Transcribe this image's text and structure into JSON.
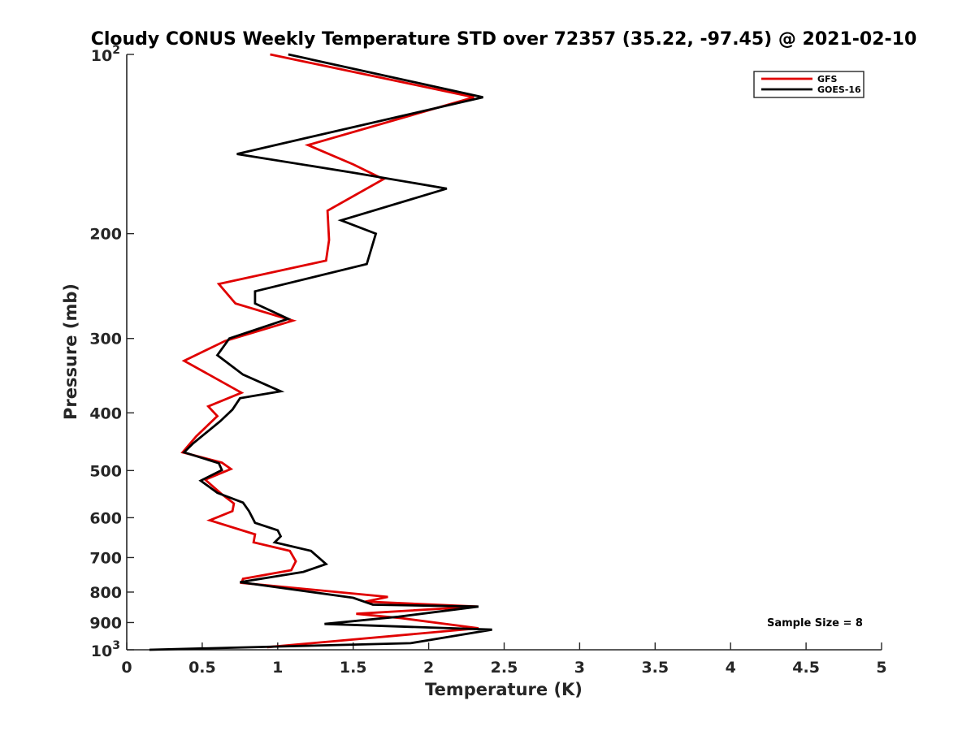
{
  "chart_data": {
    "type": "line",
    "title": "Cloudy CONUS Weekly Temperature STD over 72357 (35.22, -97.45) @ 2021-02-10",
    "xlabel": "Temperature (K)",
    "ylabel": "Pressure (mb)",
    "xlim": [
      0,
      5
    ],
    "ylim": [
      100,
      1000
    ],
    "y_scale": "log",
    "y_reversed": true,
    "grid": false,
    "legend_position": "top-right",
    "x_ticks": [
      "0",
      "0.5",
      "1",
      "1.5",
      "2",
      "2.5",
      "3",
      "3.5",
      "4",
      "4.5",
      "5"
    ],
    "x_tick_values": [
      0,
      0.5,
      1,
      1.5,
      2,
      2.5,
      3,
      3.5,
      4,
      4.5,
      5
    ],
    "y_ticks": [
      {
        "value": 100,
        "base": "10",
        "exp": "2"
      },
      {
        "value": 200,
        "label": "200"
      },
      {
        "value": 300,
        "label": "300"
      },
      {
        "value": 400,
        "label": "400"
      },
      {
        "value": 500,
        "label": "500"
      },
      {
        "value": 600,
        "label": "600"
      },
      {
        "value": 700,
        "label": "700"
      },
      {
        "value": 800,
        "label": "800"
      },
      {
        "value": 900,
        "label": "900"
      },
      {
        "value": 1000,
        "base": "10",
        "exp": "3"
      }
    ],
    "annotation": "Sample Size = 8",
    "series": [
      {
        "name": "GFS",
        "color": "#e00000",
        "points": [
          [
            0.95,
            100
          ],
          [
            2.3,
            118
          ],
          [
            1.2,
            142
          ],
          [
            1.5,
            153
          ],
          [
            1.7,
            162
          ],
          [
            1.33,
            183
          ],
          [
            1.34,
            205
          ],
          [
            1.32,
            222
          ],
          [
            0.61,
            243
          ],
          [
            0.72,
            262
          ],
          [
            1.1,
            280
          ],
          [
            0.65,
            303
          ],
          [
            0.38,
            327
          ],
          [
            0.76,
            370
          ],
          [
            0.54,
            390
          ],
          [
            0.6,
            405
          ],
          [
            0.46,
            438
          ],
          [
            0.37,
            466
          ],
          [
            0.63,
            485
          ],
          [
            0.69,
            497
          ],
          [
            0.52,
            518
          ],
          [
            0.63,
            548
          ],
          [
            0.71,
            568
          ],
          [
            0.7,
            585
          ],
          [
            0.55,
            606
          ],
          [
            0.85,
            640
          ],
          [
            0.84,
            660
          ],
          [
            1.08,
            682
          ],
          [
            1.12,
            710
          ],
          [
            1.09,
            735
          ],
          [
            0.77,
            760
          ],
          [
            0.76,
            772
          ],
          [
            1.73,
            815
          ],
          [
            1.58,
            830
          ],
          [
            2.32,
            846
          ],
          [
            1.52,
            870
          ],
          [
            1.82,
            885
          ],
          [
            2.33,
            920
          ],
          [
            0.93,
            990
          ]
        ]
      },
      {
        "name": "GOES-16",
        "color": "#000000",
        "points": [
          [
            1.07,
            100
          ],
          [
            2.36,
            118
          ],
          [
            0.73,
            147
          ],
          [
            1.5,
            158
          ],
          [
            2.12,
            168
          ],
          [
            1.42,
            190
          ],
          [
            1.65,
            200
          ],
          [
            1.59,
            225
          ],
          [
            0.85,
            250
          ],
          [
            0.85,
            262
          ],
          [
            1.07,
            278
          ],
          [
            0.68,
            300
          ],
          [
            0.6,
            320
          ],
          [
            0.77,
            345
          ],
          [
            1.02,
            368
          ],
          [
            0.75,
            378
          ],
          [
            0.7,
            395
          ],
          [
            0.62,
            413
          ],
          [
            0.44,
            450
          ],
          [
            0.38,
            466
          ],
          [
            0.61,
            486
          ],
          [
            0.63,
            499
          ],
          [
            0.49,
            520
          ],
          [
            0.6,
            545
          ],
          [
            0.77,
            566
          ],
          [
            0.81,
            585
          ],
          [
            0.85,
            612
          ],
          [
            1.0,
            630
          ],
          [
            1.02,
            645
          ],
          [
            0.98,
            660
          ],
          [
            1.22,
            682
          ],
          [
            1.32,
            718
          ],
          [
            1.17,
            740
          ],
          [
            0.75,
            770
          ],
          [
            1.5,
            818
          ],
          [
            1.63,
            840
          ],
          [
            2.33,
            846
          ],
          [
            1.8,
            880
          ],
          [
            1.31,
            905
          ],
          [
            2.42,
            925
          ],
          [
            2.2,
            945
          ],
          [
            1.88,
            975
          ],
          [
            0.15,
            1000
          ]
        ]
      }
    ]
  }
}
